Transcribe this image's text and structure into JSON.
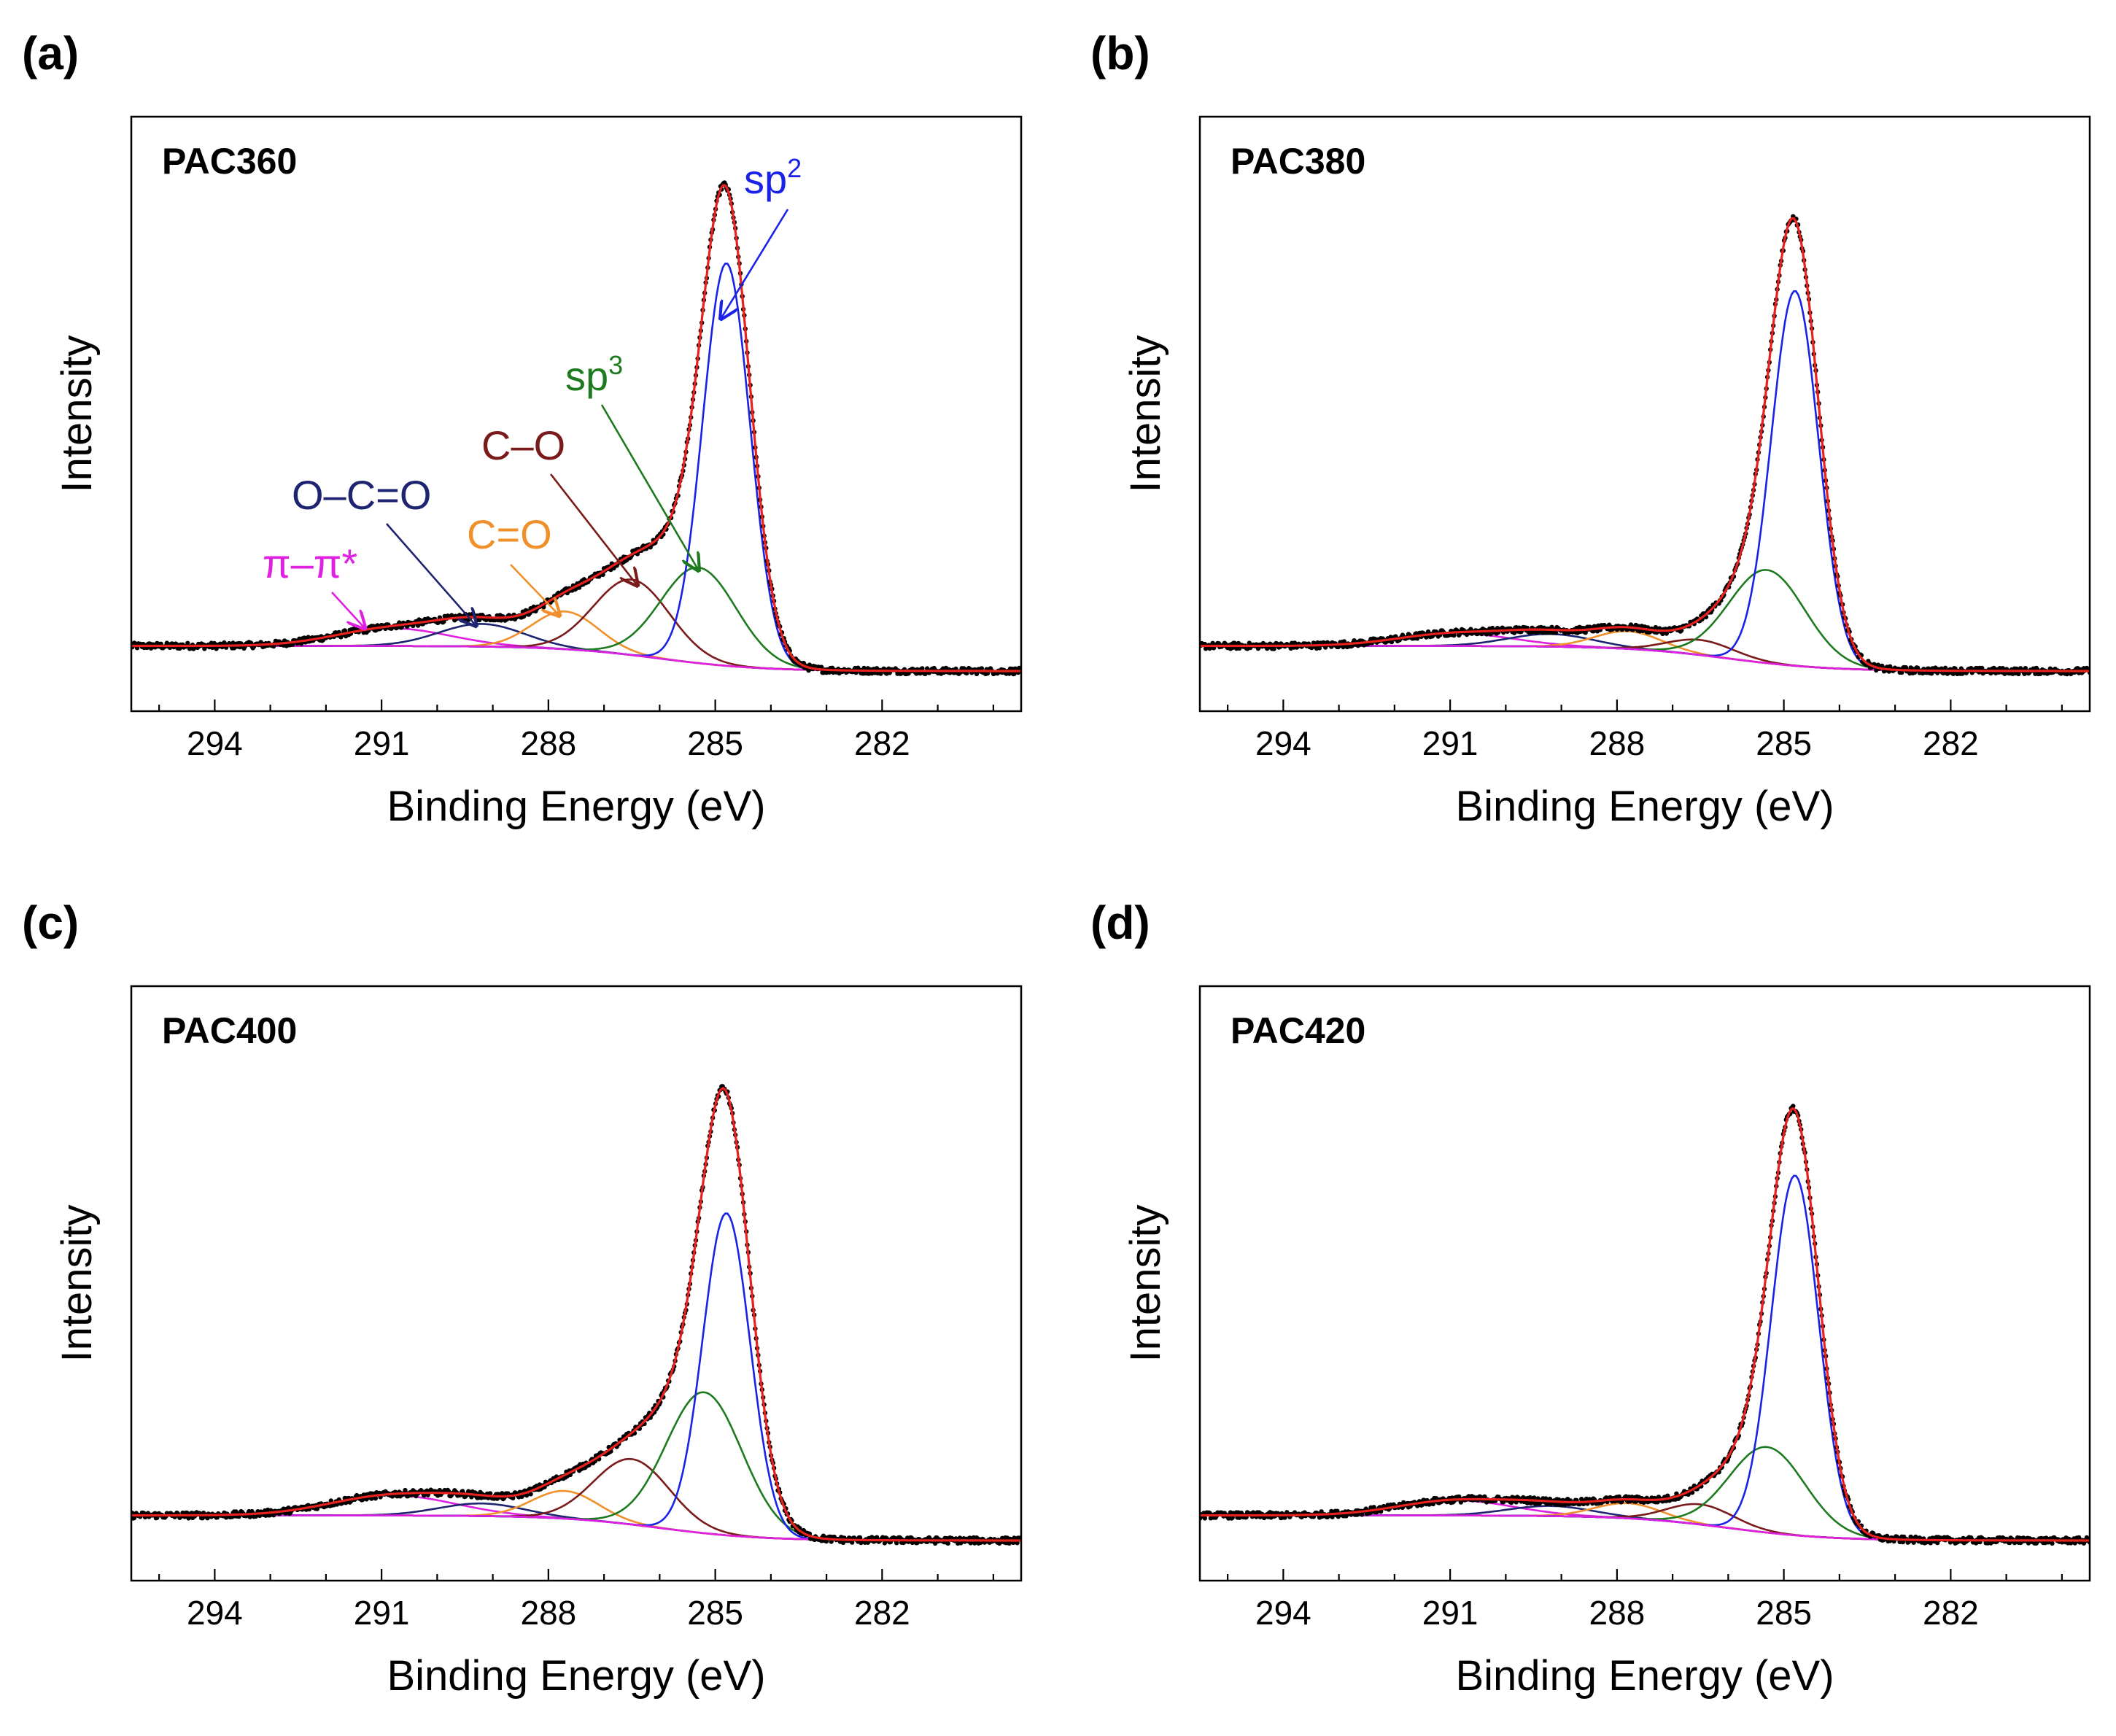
{
  "figure": {
    "colors": {
      "data": "#000000",
      "envelope": "#e8201e",
      "sp2": "#1a22e8",
      "sp3": "#1e7a1e",
      "C-O": "#7a1a1a",
      "C=O": "#f0902a",
      "O-C=O": "#1e2470",
      "pi-pi": "#e020e0"
    }
  },
  "chart_data": [
    {
      "type": "line",
      "panel": "(a)",
      "sample": "PAC360",
      "xlabel": "Binding Energy (eV)",
      "ylabel": "Intensity",
      "xlim": [
        295.5,
        279.5
      ],
      "ylim": [
        0,
        10
      ],
      "x_ticks": [
        294,
        291,
        288,
        285,
        282
      ],
      "x_tick_labels": [
        "294",
        "291",
        "288",
        "285",
        "282"
      ],
      "baseline": {
        "left": 0.5,
        "right": 0.0
      },
      "peaks": [
        {
          "name": "sp2",
          "label": "sp2",
          "center": 284.8,
          "height": 8.0,
          "fwhm": 1.0
        },
        {
          "name": "sp3",
          "label": "sp3",
          "center": 285.3,
          "height": 1.9,
          "fwhm": 1.6
        },
        {
          "name": "C-O",
          "label": "C–O",
          "center": 286.5,
          "height": 1.5,
          "fwhm": 1.6
        },
        {
          "name": "C=O",
          "label": "C=O",
          "center": 287.7,
          "height": 0.75,
          "fwhm": 1.4
        },
        {
          "name": "O-C=O",
          "label": "O–C=O",
          "center": 289.2,
          "height": 0.45,
          "fwhm": 1.8
        },
        {
          "name": "pi-pi",
          "label": "π–π*",
          "center": 290.8,
          "height": 0.35,
          "fwhm": 2.4
        }
      ],
      "annotations": [
        {
          "peak": "sp2",
          "text": "sp",
          "sup": "2",
          "at": [
            284.9,
            7.0
          ]
        },
        {
          "peak": "sp3",
          "text": "sp",
          "sup": "3",
          "at": [
            285.3,
            2.0
          ]
        },
        {
          "peak": "C-O",
          "text": "C–O",
          "sup": "",
          "at": [
            286.4,
            1.7
          ]
        },
        {
          "peak": "C=O",
          "text": "C=O",
          "sup": "",
          "at": [
            287.8,
            1.1
          ]
        },
        {
          "peak": "O-C=O",
          "text": "O–C=O",
          "sup": "",
          "at": [
            289.3,
            0.9
          ]
        },
        {
          "peak": "pi-pi",
          "text": "π–π*",
          "sup": "",
          "at": [
            291.3,
            0.85
          ]
        }
      ]
    },
    {
      "type": "line",
      "panel": "(b)",
      "sample": "PAC380",
      "xlabel": "Binding Energy (eV)",
      "ylabel": "Intensity",
      "xlim": [
        295.5,
        279.5
      ],
      "ylim": [
        0,
        10
      ],
      "x_ticks": [
        294,
        291,
        288,
        285,
        282
      ],
      "x_tick_labels": [
        "294",
        "291",
        "288",
        "285",
        "282"
      ],
      "baseline": {
        "left": 0.5,
        "right": 0.0
      },
      "peaks": [
        {
          "name": "sp2",
          "label": "sp2",
          "center": 284.8,
          "height": 7.45,
          "fwhm": 1.0
        },
        {
          "name": "sp3",
          "label": "sp3",
          "center": 285.3,
          "height": 1.85,
          "fwhm": 1.6
        },
        {
          "name": "C-O",
          "label": "C–O",
          "center": 286.5,
          "height": 0.3,
          "fwhm": 1.4
        },
        {
          "name": "C=O",
          "label": "C=O",
          "center": 287.8,
          "height": 0.35,
          "fwhm": 1.4
        },
        {
          "name": "O-C=O",
          "label": "O–C=O",
          "center": 289.2,
          "height": 0.25,
          "fwhm": 1.8
        },
        {
          "name": "pi-pi",
          "label": "π–π*",
          "center": 290.9,
          "height": 0.25,
          "fwhm": 2.4
        }
      ],
      "annotations": []
    },
    {
      "type": "line",
      "panel": "(c)",
      "sample": "PAC400",
      "xlabel": "Binding Energy (eV)",
      "ylabel": "Intensity",
      "xlim": [
        295.5,
        279.5
      ],
      "ylim": [
        0,
        10
      ],
      "x_ticks": [
        294,
        291,
        288,
        285,
        282
      ],
      "x_tick_labels": [
        "294",
        "291",
        "288",
        "285",
        "282"
      ],
      "baseline": {
        "left": 0.5,
        "right": 0.0
      },
      "peaks": [
        {
          "name": "sp2",
          "label": "sp2",
          "center": 284.8,
          "height": 6.4,
          "fwhm": 1.0
        },
        {
          "name": "sp3",
          "label": "sp3",
          "center": 285.2,
          "height": 2.8,
          "fwhm": 1.6
        },
        {
          "name": "C-O",
          "label": "C–O",
          "center": 286.5,
          "height": 1.3,
          "fwhm": 1.6
        },
        {
          "name": "C=O",
          "label": "C=O",
          "center": 287.7,
          "height": 0.55,
          "fwhm": 1.4
        },
        {
          "name": "O-C=O",
          "label": "O–C=O",
          "center": 289.2,
          "height": 0.25,
          "fwhm": 1.8
        },
        {
          "name": "pi-pi",
          "label": "π–π*",
          "center": 290.8,
          "height": 0.4,
          "fwhm": 2.6
        }
      ],
      "annotations": []
    },
    {
      "type": "line",
      "panel": "(d)",
      "sample": "PAC420",
      "xlabel": "Binding Energy (eV)",
      "ylabel": "Intensity",
      "xlim": [
        295.5,
        279.5
      ],
      "ylim": [
        0,
        10
      ],
      "x_ticks": [
        294,
        291,
        288,
        285,
        282
      ],
      "x_tick_labels": [
        "294",
        "291",
        "288",
        "285",
        "282"
      ],
      "baseline": {
        "left": 0.5,
        "right": 0.0
      },
      "peaks": [
        {
          "name": "sp2",
          "label": "sp2",
          "center": 284.8,
          "height": 7.15,
          "fwhm": 1.0
        },
        {
          "name": "sp3",
          "label": "sp3",
          "center": 285.3,
          "height": 1.7,
          "fwhm": 1.6
        },
        {
          "name": "C-O",
          "label": "C–O",
          "center": 286.5,
          "height": 0.4,
          "fwhm": 1.4
        },
        {
          "name": "C=O",
          "label": "C=O",
          "center": 287.8,
          "height": 0.3,
          "fwhm": 1.4
        },
        {
          "name": "O-C=O",
          "label": "O–C=O",
          "center": 289.2,
          "height": 0.2,
          "fwhm": 1.8
        },
        {
          "name": "pi-pi",
          "label": "π–π*",
          "center": 290.9,
          "height": 0.3,
          "fwhm": 2.4
        }
      ],
      "annotations": []
    }
  ]
}
